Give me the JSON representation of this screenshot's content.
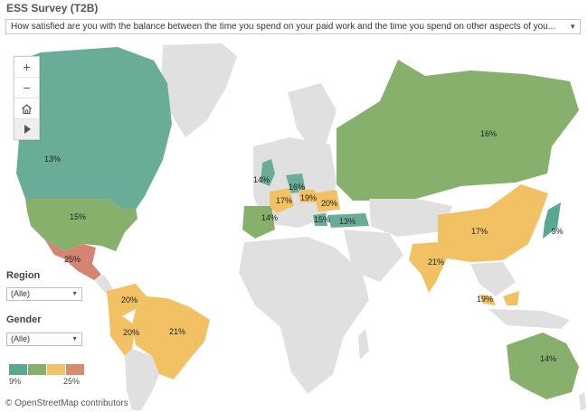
{
  "header": {
    "title": "ESS Survey (T2B)",
    "question": "How satisfied are you with the balance between the time you spend on your paid work and the time you spend on other aspects of you..."
  },
  "zoom_toolbar": {
    "zoom_in": "+",
    "zoom_out": "−",
    "home_icon": "home-icon",
    "play_icon": "play-icon"
  },
  "filters": {
    "region_label": "Region",
    "region_value": "(Alle)",
    "gender_label": "Gender",
    "gender_value": "(Alle)"
  },
  "legend": {
    "min_label": "9%",
    "max_label": "25%",
    "colors": [
      "#5aa894",
      "#86b06c",
      "#f1c164",
      "#d98a6f"
    ]
  },
  "attribution": "© OpenStreetMap contributors",
  "map": {
    "land_color": "#e0e0e0",
    "countries": [
      {
        "name": "Canada",
        "value": "13%",
        "color": "#69ad98"
      },
      {
        "name": "United States",
        "value": "15%",
        "color": "#86b06c"
      },
      {
        "name": "Mexico",
        "value": "25%",
        "color": "#d48470"
      },
      {
        "name": "Colombia",
        "value": "20%",
        "color": "#f1c164"
      },
      {
        "name": "Peru",
        "value": "20%",
        "color": "#f1c164"
      },
      {
        "name": "Brazil",
        "value": "21%",
        "color": "#f1c164"
      },
      {
        "name": "United Kingdom",
        "value": "14%",
        "color": "#69ad98"
      },
      {
        "name": "Spain",
        "value": "14%",
        "color": "#86b06c"
      },
      {
        "name": "France",
        "value": "17%",
        "color": "#f1c164"
      },
      {
        "name": "Germany",
        "value": "16%",
        "color": "#69ad98"
      },
      {
        "name": "Czechia",
        "value": "19%",
        "color": "#f1c164"
      },
      {
        "name": "Poland",
        "value": "20%",
        "color": "#f1c164"
      },
      {
        "name": "Greece",
        "value": "15%",
        "color": "#69ad98"
      },
      {
        "name": "Turkey",
        "value": "13%",
        "color": "#69ad98"
      },
      {
        "name": "Russia",
        "value": "16%",
        "color": "#86b06c"
      },
      {
        "name": "China",
        "value": "17%",
        "color": "#f1c164"
      },
      {
        "name": "Japan",
        "value": "9%",
        "color": "#5aa894"
      },
      {
        "name": "India",
        "value": "21%",
        "color": "#f1c164"
      },
      {
        "name": "Malaysia",
        "value": "19%",
        "color": "#f1c164"
      },
      {
        "name": "Australia",
        "value": "14%",
        "color": "#86b06c"
      }
    ]
  }
}
